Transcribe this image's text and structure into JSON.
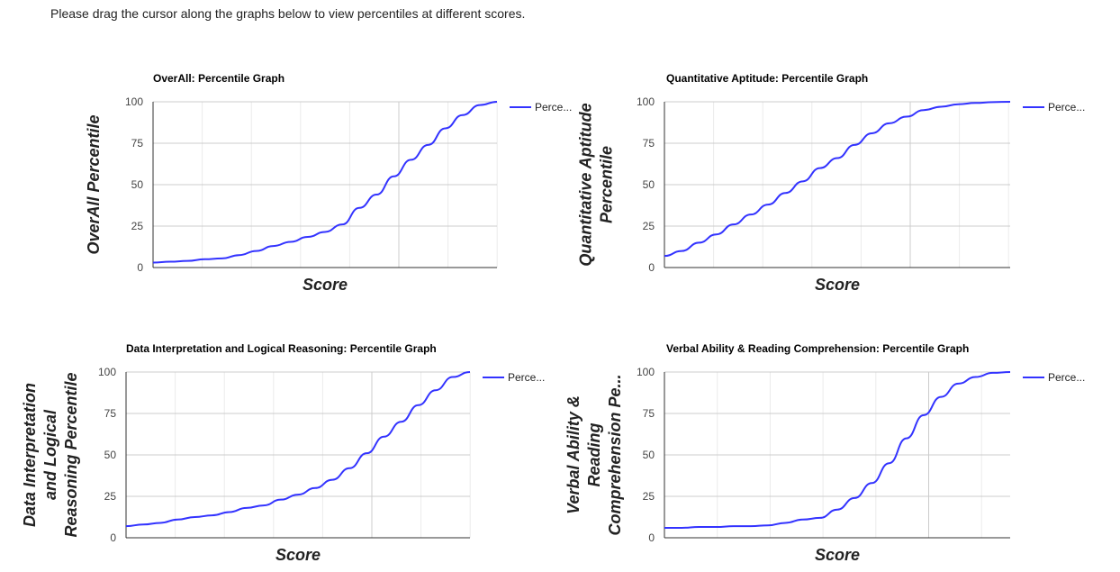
{
  "instruction": "Please drag the cursor along the graphs below to view percentiles at different scores.",
  "line_color": "#3333ff",
  "chart_data": [
    {
      "type": "line",
      "title": "OverAll: Percentile Graph",
      "xlabel": "Score",
      "ylabel_lines": [
        "OverAll Percentile"
      ],
      "ylim": [
        0,
        100
      ],
      "yticks": [
        "0",
        "25",
        "50",
        "75",
        "100"
      ],
      "legend": "Perce...",
      "legend_position": "right",
      "grid": true,
      "x": [
        0,
        0.05,
        0.1,
        0.15,
        0.2,
        0.25,
        0.3,
        0.35,
        0.4,
        0.45,
        0.5,
        0.55,
        0.6,
        0.65,
        0.7,
        0.75,
        0.8,
        0.85,
        0.9,
        0.95,
        1
      ],
      "values": [
        3,
        3.5,
        4,
        5,
        5.5,
        7.5,
        10,
        13,
        15.5,
        18.5,
        21.5,
        26,
        36,
        44,
        55,
        65,
        74,
        84,
        92,
        98,
        100
      ]
    },
    {
      "type": "line",
      "title": "Quantitative Aptitude: Percentile Graph",
      "xlabel": "Score",
      "ylabel_lines": [
        "Quantitative Aptitude",
        "Percentile"
      ],
      "ylim": [
        0,
        100
      ],
      "yticks": [
        "0",
        "25",
        "50",
        "75",
        "100"
      ],
      "legend": "Perce...",
      "legend_position": "right",
      "grid": true,
      "x": [
        0,
        0.05,
        0.1,
        0.15,
        0.2,
        0.25,
        0.3,
        0.35,
        0.4,
        0.45,
        0.5,
        0.55,
        0.6,
        0.65,
        0.7,
        0.75,
        0.8,
        0.85,
        0.9,
        0.95,
        1
      ],
      "values": [
        7,
        10,
        15,
        20,
        26,
        32,
        38,
        45,
        52,
        60,
        66,
        74,
        81,
        87,
        91,
        95,
        97,
        98.5,
        99.3,
        99.8,
        100
      ]
    },
    {
      "type": "line",
      "title": "Data Interpretation and Logical Reasoning: Percentile Graph",
      "xlabel": "Score",
      "ylabel_lines": [
        "Data Interpretation",
        "and Logical",
        "Reasoning Percentile"
      ],
      "ylim": [
        0,
        100
      ],
      "yticks": [
        "0",
        "25",
        "50",
        "75",
        "100"
      ],
      "legend": "Perce...",
      "legend_position": "right",
      "grid": true,
      "x": [
        0,
        0.05,
        0.1,
        0.15,
        0.2,
        0.25,
        0.3,
        0.35,
        0.4,
        0.45,
        0.5,
        0.55,
        0.6,
        0.65,
        0.7,
        0.75,
        0.8,
        0.85,
        0.9,
        0.95,
        1
      ],
      "values": [
        7,
        8,
        9,
        11,
        12.5,
        13.5,
        15.5,
        18,
        19.5,
        23,
        26,
        30,
        35,
        42,
        51,
        61,
        70,
        80,
        89,
        97,
        100
      ]
    },
    {
      "type": "line",
      "title": "Verbal Ability & Reading Comprehension: Percentile Graph",
      "xlabel": "Score",
      "ylabel_lines": [
        "Verbal Ability &",
        "Reading",
        "Comprehension Pe..."
      ],
      "ylim": [
        0,
        100
      ],
      "yticks": [
        "0",
        "25",
        "50",
        "75",
        "100"
      ],
      "legend": "Perce...",
      "legend_position": "right",
      "grid": true,
      "x": [
        0,
        0.05,
        0.1,
        0.15,
        0.2,
        0.25,
        0.3,
        0.35,
        0.4,
        0.45,
        0.5,
        0.55,
        0.6,
        0.65,
        0.7,
        0.75,
        0.8,
        0.85,
        0.9,
        0.95,
        1
      ],
      "values": [
        6,
        6,
        6.5,
        6.5,
        7,
        7,
        7.5,
        9,
        11,
        12,
        17,
        24,
        33,
        45,
        60,
        74,
        85,
        93,
        97,
        99.5,
        100
      ]
    }
  ]
}
